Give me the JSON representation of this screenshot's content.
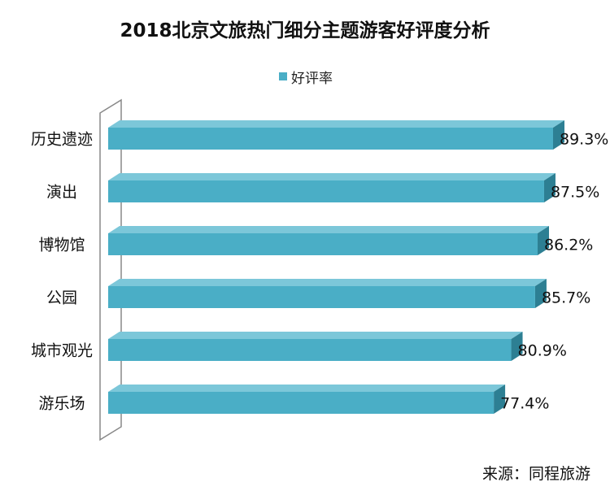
{
  "title": "2018北京文旅热门细分主题游客好评度分析",
  "source_label": "来源：同程旅游",
  "colors": {
    "bar_front": "#4aaec6",
    "bar_top": "#7cc7d9",
    "bar_side": "#2d7f93",
    "axis_wall": "#888888"
  },
  "chart_data": {
    "type": "bar",
    "orientation": "horizontal",
    "title": "2018北京文旅热门细分主题游客好评度分析",
    "categories": [
      "历史遗迹",
      "演出",
      "博物馆",
      "公园",
      "城市观光",
      "游乐场"
    ],
    "series": [
      {
        "name": "好评率",
        "values": [
          89.3,
          87.5,
          86.2,
          85.7,
          80.9,
          77.4
        ],
        "labels": [
          "89.3%",
          "87.5%",
          "86.2%",
          "85.7%",
          "80.9%",
          "77.4%"
        ]
      }
    ],
    "legend_position": "top",
    "grid": false,
    "xlim": [
      0,
      89.3
    ]
  }
}
